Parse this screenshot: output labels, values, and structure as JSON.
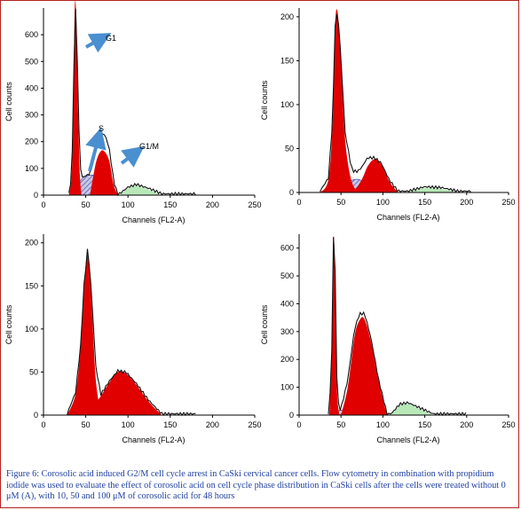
{
  "figure": {
    "caption": "Figure 6: Corosolic acid induced G2/M cell cycle arrest in CaSki cervical cancer cells. Flow cytometry in combination with propidium iodide was used to evaluate the effect of corosolic acid on cell cycle phase distribution in CaSki cells after the cells were treated without 0 μM (A), with 10, 50 and 100 μM of corosolic acid for 48 hours"
  },
  "colors": {
    "g1_fill": "#e00000",
    "g2m_fill": "#e00000",
    "s_phase_fill": "#c8c8e8",
    "s_phase_hatch": "#3a3aa0",
    "debris_fill": "#b8e8b8",
    "outline": "#111111",
    "arrow": "#4a8fd0",
    "caption": "#1f3f9f"
  },
  "chart_data": [
    {
      "type": "area",
      "panel": "top-left",
      "xlabel": "Channels (FL2-A)",
      "ylabel": "Cell counts",
      "xlim": [
        0,
        250
      ],
      "ylim": [
        0,
        700
      ],
      "xticks": [
        0,
        50,
        100,
        150,
        200,
        250
      ],
      "yticks": [
        0,
        100,
        200,
        300,
        400,
        500,
        600
      ],
      "annotations": [
        "G1",
        "S",
        "G1/M"
      ],
      "series": [
        {
          "name": "G1",
          "x": [
            30,
            33,
            35,
            37,
            39,
            41,
            43,
            45
          ],
          "y": [
            0,
            60,
            250,
            700,
            640,
            300,
            80,
            0
          ]
        },
        {
          "name": "S",
          "x": [
            35,
            45,
            55,
            65,
            75,
            85
          ],
          "y": [
            0,
            60,
            75,
            70,
            55,
            0
          ]
        },
        {
          "name": "G1/M",
          "x": [
            55,
            62,
            68,
            73,
            78,
            83,
            88
          ],
          "y": [
            0,
            120,
            165,
            160,
            125,
            40,
            0
          ]
        },
        {
          "name": "debris",
          "x": [
            90,
            100,
            110,
            125,
            140
          ],
          "y": [
            0,
            25,
            35,
            20,
            0
          ]
        }
      ]
    },
    {
      "type": "area",
      "panel": "top-right",
      "xlabel": "Channels (FL2-A)",
      "ylabel": "Cell counts",
      "xlim": [
        0,
        250
      ],
      "ylim": [
        0,
        210
      ],
      "xticks": [
        0,
        50,
        100,
        150,
        200,
        250
      ],
      "yticks": [
        0,
        50,
        100,
        150,
        200
      ],
      "series": [
        {
          "name": "G1",
          "x": [
            25,
            35,
            40,
            43,
            46,
            50,
            55,
            62,
            70
          ],
          "y": [
            0,
            15,
            80,
            190,
            205,
            150,
            60,
            15,
            0
          ]
        },
        {
          "name": "S",
          "x": [
            50,
            60,
            70,
            80,
            90
          ],
          "y": [
            0,
            12,
            15,
            10,
            0
          ]
        },
        {
          "name": "G1/M",
          "x": [
            65,
            75,
            82,
            90,
            98,
            108,
            118
          ],
          "y": [
            0,
            15,
            30,
            38,
            32,
            12,
            0
          ]
        },
        {
          "name": "debris",
          "x": [
            130,
            150,
            170,
            190
          ],
          "y": [
            0,
            5,
            4,
            0
          ]
        }
      ]
    },
    {
      "type": "area",
      "panel": "bottom-left",
      "xlabel": "Channels (FL2-A)",
      "ylabel": "Cell counts",
      "xlim": [
        0,
        250
      ],
      "ylim": [
        0,
        210
      ],
      "xticks": [
        0,
        50,
        100,
        150,
        200,
        250
      ],
      "yticks": [
        0,
        50,
        100,
        150,
        200
      ],
      "series": [
        {
          "name": "G1",
          "x": [
            28,
            38,
            44,
            48,
            52,
            55,
            58,
            62,
            68
          ],
          "y": [
            0,
            25,
            80,
            150,
            188,
            160,
            110,
            40,
            0
          ]
        },
        {
          "name": "G1/M",
          "x": [
            50,
            65,
            78,
            88,
            98,
            110,
            125,
            140
          ],
          "y": [
            0,
            18,
            38,
            50,
            48,
            35,
            15,
            0
          ]
        }
      ]
    },
    {
      "type": "area",
      "panel": "bottom-right",
      "xlabel": "Channels (FL2-A)",
      "ylabel": "Cell counts",
      "xlim": [
        0,
        250
      ],
      "ylim": [
        0,
        650
      ],
      "xticks": [
        0,
        50,
        100,
        150,
        200,
        250
      ],
      "yticks": [
        0,
        100,
        200,
        300,
        400,
        500,
        600
      ],
      "series": [
        {
          "name": "G1",
          "x": [
            36,
            39,
            41,
            43,
            45,
            47,
            49
          ],
          "y": [
            0,
            220,
            630,
            500,
            120,
            20,
            0
          ]
        },
        {
          "name": "S",
          "x": [
            35,
            50,
            65,
            80,
            95
          ],
          "y": [
            0,
            18,
            22,
            15,
            0
          ]
        },
        {
          "name": "G1/M",
          "x": [
            50,
            58,
            66,
            72,
            78,
            86,
            95,
            105
          ],
          "y": [
            0,
            100,
            280,
            340,
            345,
            260,
            120,
            0
          ]
        },
        {
          "name": "debris",
          "x": [
            110,
            120,
            130,
            145,
            160
          ],
          "y": [
            0,
            35,
            40,
            20,
            0
          ]
        }
      ]
    }
  ]
}
